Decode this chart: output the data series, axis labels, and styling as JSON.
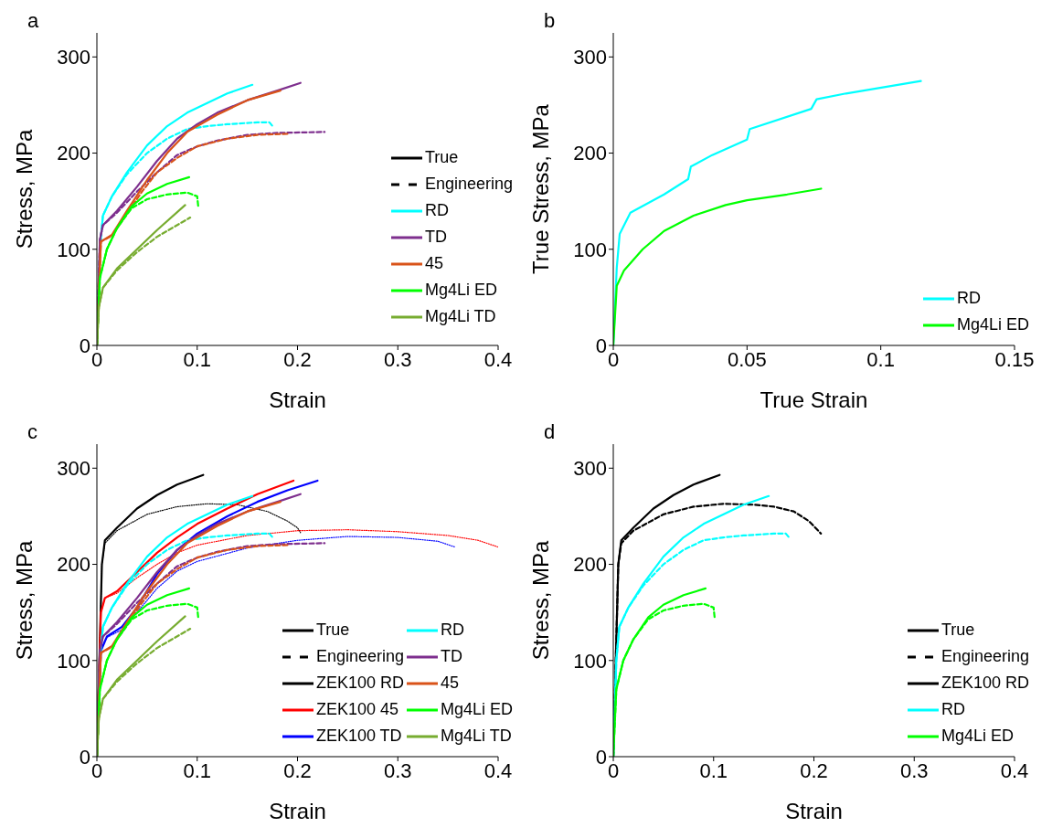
{
  "chart_data": [
    {
      "type": "line",
      "title": "a",
      "xlabel": "Strain",
      "ylabel": "Stress, MPa",
      "xlim": [
        0,
        0.4
      ],
      "xticks": [
        0,
        0.1,
        0.2,
        0.3,
        0.4
      ],
      "ylim": [
        0,
        325
      ],
      "yticks": [
        0,
        100,
        200,
        300
      ],
      "grid": false,
      "legend": "right",
      "marker": "none",
      "series": [
        {
          "name": "True",
          "color": "#000000",
          "line_style": "solid"
        },
        {
          "name": "Engineering",
          "color": "#000000",
          "line_style": "dashed"
        },
        {
          "name": "RD",
          "color": "#00ffff",
          "line_style": "solid",
          "x": [
            0,
            0.003,
            0.006,
            0.015,
            0.03,
            0.05,
            0.07,
            0.09,
            0.11,
            0.13,
            0.155
          ],
          "values": [
            0,
            100,
            135,
            155,
            180,
            208,
            228,
            242,
            252,
            262,
            271
          ]
        },
        {
          "color": "#00ffff",
          "line_style": "dashed",
          "x": [
            0,
            0.003,
            0.006,
            0.015,
            0.03,
            0.05,
            0.07,
            0.09,
            0.11,
            0.13,
            0.16,
            0.172,
            0.176
          ],
          "values": [
            0,
            100,
            135,
            155,
            178,
            200,
            215,
            225,
            228,
            230,
            232,
            232,
            227
          ]
        },
        {
          "name": "TD",
          "color": "#7e2f8e",
          "line_style": "solid",
          "x": [
            0,
            0.003,
            0.006,
            0.02,
            0.04,
            0.06,
            0.08,
            0.1,
            0.12,
            0.15,
            0.18,
            0.203
          ],
          "values": [
            0,
            110,
            125,
            140,
            165,
            192,
            215,
            230,
            242,
            255,
            265,
            273
          ]
        },
        {
          "color": "#7e2f8e",
          "line_style": "dashed",
          "x": [
            0,
            0.003,
            0.006,
            0.02,
            0.04,
            0.06,
            0.08,
            0.1,
            0.12,
            0.15,
            0.18,
            0.227
          ],
          "values": [
            0,
            110,
            125,
            138,
            160,
            180,
            198,
            207,
            213,
            219,
            221,
            222
          ]
        },
        {
          "name": "45",
          "color": "#d95319",
          "line_style": "solid",
          "x": [
            0,
            0.004,
            0.015,
            0.03,
            0.05,
            0.07,
            0.09,
            0.12,
            0.15,
            0.183
          ],
          "values": [
            0,
            108,
            115,
            140,
            172,
            200,
            222,
            240,
            255,
            265
          ]
        },
        {
          "color": "#d95319",
          "line_style": "dashed",
          "x": [
            0,
            0.004,
            0.015,
            0.03,
            0.045,
            0.06,
            0.08,
            0.1,
            0.13,
            0.16,
            0.19
          ],
          "values": [
            0,
            108,
            114,
            137,
            160,
            180,
            195,
            207,
            215,
            219,
            220
          ]
        },
        {
          "name": "Mg4Li ED",
          "color": "#00ff00",
          "line_style": "solid",
          "x": [
            0,
            0.003,
            0.01,
            0.02,
            0.035,
            0.05,
            0.07,
            0.092
          ],
          "values": [
            0,
            70,
            100,
            122,
            145,
            158,
            168,
            175
          ]
        },
        {
          "color": "#00ff00",
          "line_style": "dashed",
          "x": [
            0,
            0.003,
            0.01,
            0.02,
            0.035,
            0.05,
            0.07,
            0.09,
            0.1,
            0.101
          ],
          "values": [
            0,
            70,
            100,
            122,
            143,
            152,
            157,
            159,
            155,
            145
          ]
        },
        {
          "name": "Mg4Li TD",
          "color": "#77ac30",
          "line_style": "solid",
          "x": [
            0,
            0.002,
            0.006,
            0.02,
            0.04,
            0.06,
            0.088
          ],
          "values": [
            0,
            40,
            60,
            80,
            100,
            120,
            146
          ]
        },
        {
          "color": "#77ac30",
          "line_style": "dashed",
          "x": [
            0,
            0.002,
            0.006,
            0.02,
            0.04,
            0.06,
            0.093
          ],
          "values": [
            0,
            40,
            60,
            78,
            97,
            113,
            133
          ]
        }
      ]
    },
    {
      "type": "line",
      "title": "b",
      "xlabel": "True Strain",
      "ylabel": "True Stress, MPa",
      "xlim": [
        0,
        0.15
      ],
      "xticks": [
        0,
        0.05,
        0.1,
        0.15
      ],
      "ylim": [
        0,
        325
      ],
      "yticks": [
        0,
        100,
        200,
        300
      ],
      "grid": false,
      "legend": "bottom right",
      "marker": "none",
      "series": [
        {
          "name": "RD",
          "color": "#00ffff",
          "line_style": "solid",
          "x": [
            0,
            0.0013,
            0.0024,
            0.0064,
            0.019,
            0.028,
            0.029,
            0.037,
            0.05,
            0.051,
            0.074,
            0.076,
            0.087,
            0.115
          ],
          "values": [
            0,
            81,
            116,
            138,
            157,
            173,
            186,
            198,
            214,
            225,
            246,
            256,
            262,
            275
          ]
        },
        {
          "name": "Mg4Li ED",
          "color": "#00ff00",
          "line_style": "solid",
          "x": [
            0,
            0.0013,
            0.004,
            0.011,
            0.019,
            0.03,
            0.042,
            0.05,
            0.065,
            0.0777
          ],
          "values": [
            0,
            62,
            78,
            100,
            119,
            135,
            146,
            151,
            157,
            163
          ]
        }
      ]
    },
    {
      "type": "line",
      "title": "c",
      "xlabel": "Strain",
      "ylabel": "Stress, MPa",
      "xlim": [
        0,
        0.4
      ],
      "xticks": [
        0,
        0.1,
        0.2,
        0.3,
        0.4
      ],
      "ylim": [
        0,
        325
      ],
      "yticks": [
        0,
        100,
        200,
        300
      ],
      "grid": false,
      "legend": "bottom right",
      "marker": "none",
      "series": [
        {
          "name": "True",
          "color": "#000000",
          "line_style": "solid"
        },
        {
          "name": "Engineering",
          "color": "#000000",
          "line_style": "dashed"
        },
        {
          "name": "ZEK100 RD",
          "color": "#000000",
          "line_style": "solid",
          "x": [
            0,
            0.005,
            0.008,
            0.02,
            0.04,
            0.06,
            0.08,
            0.106
          ],
          "values": [
            0,
            200,
            225,
            238,
            258,
            272,
            283,
            293
          ]
        },
        {
          "color": "#000000",
          "line_style": "dotted",
          "x": [
            0,
            0.005,
            0.008,
            0.02,
            0.05,
            0.08,
            0.11,
            0.14,
            0.17,
            0.19,
            0.2,
            0.203
          ],
          "values": [
            0,
            200,
            222,
            235,
            252,
            260,
            263,
            262,
            255,
            245,
            238,
            233
          ]
        },
        {
          "name": "ZEK100 45",
          "color": "#ff0000",
          "line_style": "solid",
          "x": [
            0,
            0.004,
            0.008,
            0.02,
            0.04,
            0.06,
            0.08,
            0.1,
            0.13,
            0.16,
            0.196
          ],
          "values": [
            0,
            150,
            165,
            172,
            192,
            212,
            228,
            242,
            258,
            273,
            287
          ]
        },
        {
          "color": "#ff0000",
          "line_style": "dotted",
          "x": [
            0,
            0.004,
            0.008,
            0.02,
            0.04,
            0.06,
            0.08,
            0.1,
            0.15,
            0.2,
            0.25,
            0.3,
            0.35,
            0.38,
            0.4
          ],
          "values": [
            0,
            150,
            165,
            170,
            186,
            200,
            212,
            220,
            230,
            235,
            236,
            234,
            230,
            225,
            218
          ]
        },
        {
          "name": "ZEK100 TD",
          "color": "#0000ff",
          "line_style": "solid",
          "x": [
            0,
            0.004,
            0.01,
            0.025,
            0.04,
            0.06,
            0.08,
            0.1,
            0.13,
            0.16,
            0.19,
            0.22
          ],
          "values": [
            0,
            110,
            125,
            135,
            155,
            190,
            215,
            232,
            250,
            265,
            277,
            287
          ]
        },
        {
          "color": "#0000ff",
          "line_style": "dotted",
          "x": [
            0,
            0.004,
            0.01,
            0.025,
            0.04,
            0.06,
            0.08,
            0.1,
            0.15,
            0.2,
            0.25,
            0.3,
            0.34,
            0.357
          ],
          "values": [
            0,
            110,
            124,
            132,
            150,
            175,
            193,
            203,
            217,
            225,
            229,
            228,
            224,
            218
          ]
        },
        {
          "name": "RD",
          "color": "#00ffff",
          "line_style": "solid",
          "x": [
            0,
            0.003,
            0.006,
            0.015,
            0.03,
            0.05,
            0.07,
            0.09,
            0.11,
            0.13,
            0.155
          ],
          "values": [
            0,
            100,
            135,
            155,
            180,
            208,
            228,
            242,
            252,
            262,
            271
          ]
        },
        {
          "color": "#00ffff",
          "line_style": "dashed",
          "x": [
            0,
            0.003,
            0.006,
            0.015,
            0.03,
            0.05,
            0.07,
            0.09,
            0.11,
            0.13,
            0.16,
            0.172,
            0.176
          ],
          "values": [
            0,
            100,
            135,
            155,
            178,
            200,
            215,
            225,
            228,
            230,
            232,
            232,
            227
          ]
        },
        {
          "name": "TD",
          "color": "#7e2f8e",
          "line_style": "solid",
          "x": [
            0,
            0.003,
            0.006,
            0.02,
            0.04,
            0.06,
            0.08,
            0.1,
            0.12,
            0.15,
            0.18,
            0.203
          ],
          "values": [
            0,
            110,
            125,
            140,
            165,
            192,
            215,
            230,
            242,
            255,
            265,
            273
          ]
        },
        {
          "color": "#7e2f8e",
          "line_style": "dashed",
          "x": [
            0,
            0.003,
            0.006,
            0.02,
            0.04,
            0.06,
            0.08,
            0.1,
            0.12,
            0.15,
            0.18,
            0.227
          ],
          "values": [
            0,
            110,
            125,
            138,
            160,
            180,
            198,
            207,
            213,
            219,
            221,
            222
          ]
        },
        {
          "name": "45",
          "color": "#d95319",
          "line_style": "solid",
          "x": [
            0,
            0.004,
            0.015,
            0.03,
            0.05,
            0.07,
            0.09,
            0.12,
            0.15,
            0.183
          ],
          "values": [
            0,
            108,
            115,
            140,
            172,
            200,
            222,
            240,
            255,
            265
          ]
        },
        {
          "color": "#d95319",
          "line_style": "dashed",
          "x": [
            0,
            0.004,
            0.015,
            0.03,
            0.045,
            0.06,
            0.08,
            0.1,
            0.13,
            0.16,
            0.19
          ],
          "values": [
            0,
            108,
            114,
            137,
            160,
            180,
            195,
            207,
            215,
            219,
            220
          ]
        },
        {
          "name": "Mg4Li ED",
          "color": "#00ff00",
          "line_style": "solid",
          "x": [
            0,
            0.003,
            0.01,
            0.02,
            0.035,
            0.05,
            0.07,
            0.092
          ],
          "values": [
            0,
            70,
            100,
            122,
            145,
            158,
            168,
            175
          ]
        },
        {
          "color": "#00ff00",
          "line_style": "dashed",
          "x": [
            0,
            0.003,
            0.01,
            0.02,
            0.035,
            0.05,
            0.07,
            0.09,
            0.1,
            0.101
          ],
          "values": [
            0,
            70,
            100,
            122,
            143,
            152,
            157,
            159,
            155,
            145
          ]
        },
        {
          "name": "Mg4Li TD",
          "color": "#77ac30",
          "line_style": "solid",
          "x": [
            0,
            0.002,
            0.006,
            0.02,
            0.04,
            0.06,
            0.088
          ],
          "values": [
            0,
            40,
            60,
            80,
            100,
            120,
            146
          ]
        },
        {
          "color": "#77ac30",
          "line_style": "dashed",
          "x": [
            0,
            0.002,
            0.006,
            0.02,
            0.04,
            0.06,
            0.093
          ],
          "values": [
            0,
            40,
            60,
            78,
            97,
            113,
            133
          ]
        }
      ]
    },
    {
      "type": "line",
      "title": "d",
      "xlabel": "Strain",
      "ylabel": "Stress, MPa",
      "xlim": [
        0,
        0.4
      ],
      "xticks": [
        0,
        0.1,
        0.2,
        0.3,
        0.4
      ],
      "ylim": [
        0,
        325
      ],
      "yticks": [
        0,
        100,
        200,
        300
      ],
      "grid": false,
      "legend": "bottom right",
      "marker": "none",
      "series": [
        {
          "name": "True",
          "color": "#000000",
          "line_style": "solid"
        },
        {
          "name": "Engineering",
          "color": "#000000",
          "line_style": "dashed"
        },
        {
          "name": "ZEK100 RD",
          "color": "#000000",
          "line_style": "solid",
          "x": [
            0,
            0.005,
            0.008,
            0.02,
            0.04,
            0.06,
            0.08,
            0.106
          ],
          "values": [
            0,
            200,
            225,
            238,
            258,
            272,
            283,
            293
          ]
        },
        {
          "color": "#000000",
          "line_style": "dashed",
          "x": [
            0,
            0.005,
            0.008,
            0.02,
            0.05,
            0.08,
            0.11,
            0.14,
            0.16,
            0.18,
            0.195,
            0.207
          ],
          "values": [
            0,
            200,
            222,
            235,
            252,
            260,
            263,
            262,
            260,
            255,
            245,
            232
          ]
        },
        {
          "name": "RD",
          "color": "#00ffff",
          "line_style": "solid",
          "x": [
            0,
            0.003,
            0.006,
            0.015,
            0.03,
            0.05,
            0.07,
            0.09,
            0.11,
            0.13,
            0.155
          ],
          "values": [
            0,
            100,
            135,
            155,
            180,
            208,
            228,
            242,
            252,
            262,
            271
          ]
        },
        {
          "color": "#00ffff",
          "line_style": "dashed",
          "x": [
            0,
            0.003,
            0.006,
            0.015,
            0.03,
            0.05,
            0.07,
            0.09,
            0.11,
            0.13,
            0.16,
            0.172,
            0.176
          ],
          "values": [
            0,
            100,
            135,
            155,
            178,
            200,
            215,
            225,
            228,
            230,
            232,
            232,
            227
          ]
        },
        {
          "name": "Mg4Li ED",
          "color": "#00ff00",
          "line_style": "solid",
          "x": [
            0,
            0.003,
            0.01,
            0.02,
            0.035,
            0.05,
            0.07,
            0.092
          ],
          "values": [
            0,
            70,
            100,
            122,
            145,
            158,
            168,
            175
          ]
        },
        {
          "color": "#00ff00",
          "line_style": "dashed",
          "x": [
            0,
            0.003,
            0.01,
            0.02,
            0.035,
            0.05,
            0.07,
            0.09,
            0.1,
            0.101
          ],
          "values": [
            0,
            70,
            100,
            122,
            143,
            152,
            157,
            159,
            155,
            145
          ]
        }
      ]
    }
  ]
}
